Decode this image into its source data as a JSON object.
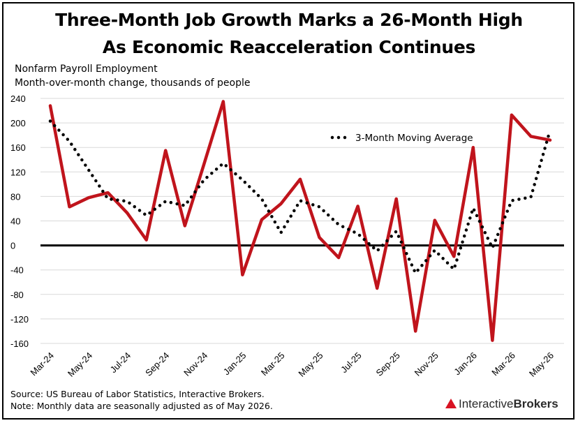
{
  "header": {
    "title_line1": "Three-Month Job Growth Marks a 26-Month High",
    "title_line2": "As Economic Reacceleration Continues",
    "subtitle_line1": "Nonfarm Payroll Employment",
    "subtitle_line2": "Month-over-month change, thousands of people"
  },
  "footer": {
    "source": "Source: US Bureau of Labor Statistics, Interactive Brokers.",
    "note": "Note: Monthly data are seasonally adjusted as of May 2026."
  },
  "logo": {
    "part1": "Interactive",
    "part2": "Brokers"
  },
  "colors": {
    "payroll_line": "#c0141c",
    "moving_average": "#000000",
    "zero_line": "#000000",
    "grid": "#d9d9d9",
    "logo_accent": "#d81222"
  },
  "chart_data": {
    "type": "line",
    "title": "Three-Month Job Growth Marks a 26-Month High As Economic Reacceleration Continues",
    "ylim": [
      -160,
      240
    ],
    "ytick_values": [
      240,
      200,
      160,
      120,
      80,
      40,
      0,
      -40,
      -80,
      -120,
      -160
    ],
    "ytick_labels": [
      "240",
      "200",
      "160",
      "120",
      "80",
      "40",
      "0",
      "-40",
      "-80",
      "-120",
      "-160"
    ],
    "x": [
      "Mar-24",
      "Apr-24",
      "May-24",
      "Jun-24",
      "Jul-24",
      "Aug-24",
      "Sep-24",
      "Oct-24",
      "Nov-24",
      "Dec-24",
      "Jan-25",
      "Feb-25",
      "Mar-25",
      "Apr-25",
      "May-25",
      "Jun-25",
      "Jul-25",
      "Aug-25",
      "Sep-25",
      "Oct-25",
      "Nov-25",
      "Dec-25",
      "Jan-26",
      "Feb-26",
      "Mar-26",
      "Apr-26",
      "May-26"
    ],
    "xtick_labels": [
      "Mar-24",
      "May-24",
      "Jul-24",
      "Sep-24",
      "Nov-24",
      "Jan-25",
      "Mar-25",
      "May-25",
      "Jul-25",
      "Sep-25",
      "Nov-25",
      "Jan-26",
      "Mar-26",
      "May-26"
    ],
    "grid": "horizontal",
    "legend_position": "top-right",
    "series": [
      {
        "values": [
          228,
          63,
          78,
          86,
          53,
          9,
          155,
          32,
          133,
          235,
          -48,
          42,
          68,
          108,
          13,
          -20,
          64,
          -70,
          76,
          -140,
          41,
          -18,
          160,
          -155,
          213,
          178,
          172
        ]
      },
      {
        "name": "3-Month Moving Average",
        "style": "dotted",
        "values": [
          203,
          170,
          123,
          76,
          72,
          49,
          72,
          65,
          107,
          134,
          107,
          76,
          21,
          73,
          63,
          34,
          19,
          -9,
          23,
          -45,
          -8,
          -39,
          61,
          -4,
          73,
          79,
          188
        ]
      }
    ]
  }
}
